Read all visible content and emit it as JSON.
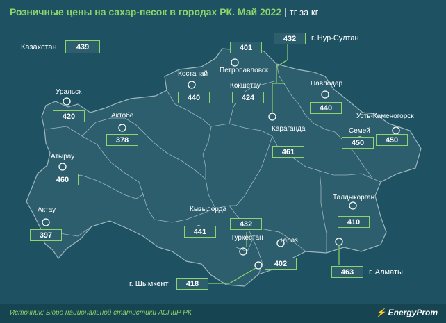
{
  "header": {
    "title": "Розничные цены на сахар-песок в городах РК. Май 2022",
    "unit": "тг за кг"
  },
  "national": {
    "label": "Казахстан",
    "value": "439"
  },
  "cities": [
    {
      "id": "petropavlovsk",
      "label": "Петропавловск",
      "value": "401"
    },
    {
      "id": "nur-sultan",
      "label": "г. Нур-Султан",
      "value": "432"
    },
    {
      "id": "kostanay",
      "label": "Костанай",
      "value": "440"
    },
    {
      "id": "kokshetau",
      "label": "Кокшетау",
      "value": "424"
    },
    {
      "id": "pavlodar",
      "label": "Павлодар",
      "value": "440"
    },
    {
      "id": "uralsk",
      "label": "Уральск",
      "value": "420"
    },
    {
      "id": "aktobe",
      "label": "Актобе",
      "value": "378"
    },
    {
      "id": "karaganda",
      "label": "Караганда",
      "value": "461"
    },
    {
      "id": "semey",
      "label": "Семей",
      "value": "450"
    },
    {
      "id": "ust-kamenogorsk",
      "label": "Усть-Каменогорск",
      "value": "450"
    },
    {
      "id": "atyrau",
      "label": "Атырау",
      "value": "460"
    },
    {
      "id": "aktau",
      "label": "Актау",
      "value": "397"
    },
    {
      "id": "kyzylorda",
      "label": "Кызылорда",
      "value": "441"
    },
    {
      "id": "turkestan",
      "label": "Туркестан",
      "value": "432"
    },
    {
      "id": "taraz",
      "label": "Тараз",
      "value": "402"
    },
    {
      "id": "taldykorgan",
      "label": "Талдыкорган",
      "value": "410"
    },
    {
      "id": "almaty",
      "label": "г. Алматы",
      "value": "463"
    },
    {
      "id": "shymkent",
      "label": "г. Шымкент",
      "value": "418"
    }
  ],
  "footer": {
    "source": "Источник: Бюро национальной статистики АСПиР РК",
    "brand": "EnergyProm"
  },
  "colors": {
    "background": "#1e5262",
    "land": "#2c5e6d",
    "accent": "#8ed36b",
    "border": "#9fb6bd"
  }
}
